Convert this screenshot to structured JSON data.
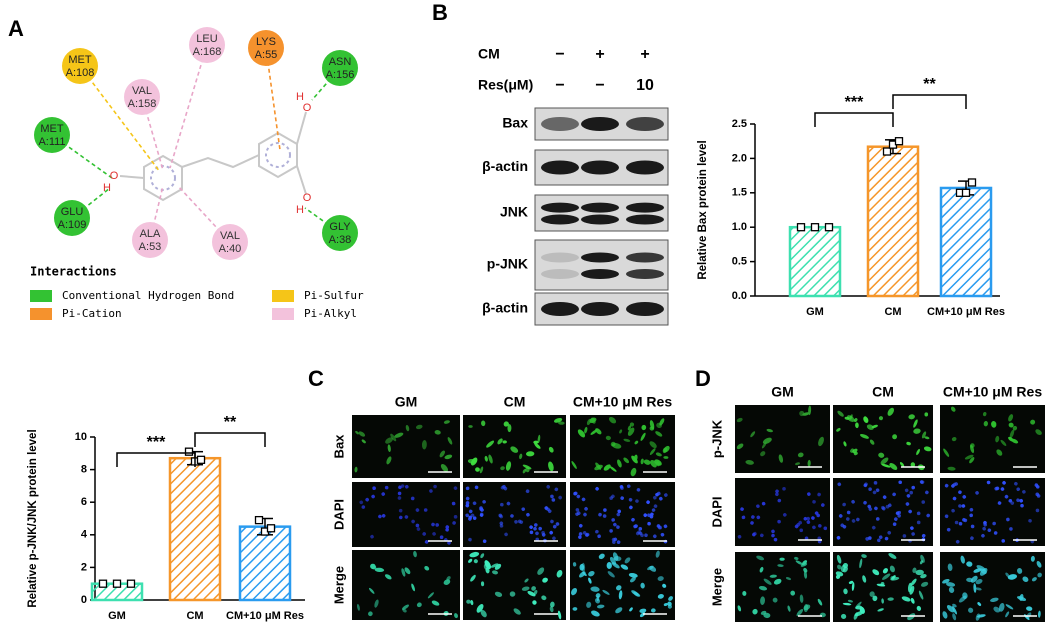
{
  "panel_labels": [
    "A",
    "B",
    "C",
    "D"
  ],
  "docking": {
    "nodes": [
      {
        "residue": "MET",
        "chain": "A:108",
        "interaction": "Pi-Sulfur"
      },
      {
        "residue": "VAL",
        "chain": "A:158",
        "interaction": "Pi-Alkyl"
      },
      {
        "residue": "LEU",
        "chain": "A:168",
        "interaction": "Pi-Alkyl"
      },
      {
        "residue": "LYS",
        "chain": "A:55",
        "interaction": "Pi-Cation"
      },
      {
        "residue": "ASN",
        "chain": "A:156",
        "interaction": "Conventional Hydrogen Bond"
      },
      {
        "residue": "MET",
        "chain": "A:111",
        "interaction": "Conventional Hydrogen Bond"
      },
      {
        "residue": "GLU",
        "chain": "A:109",
        "interaction": "Conventional Hydrogen Bond"
      },
      {
        "residue": "ALA",
        "chain": "A:53",
        "interaction": "Pi-Alkyl"
      },
      {
        "residue": "VAL",
        "chain": "A:40",
        "interaction": "Pi-Alkyl"
      },
      {
        "residue": "GLY",
        "chain": "A:38",
        "interaction": "Conventional Hydrogen Bond"
      }
    ],
    "atoms": [
      "O",
      "H",
      "O",
      "H",
      "O",
      "H"
    ],
    "legend_title": "Interactions",
    "legend": [
      {
        "label": "Conventional Hydrogen Bond",
        "color": "#33c233"
      },
      {
        "label": "Pi-Cation",
        "color": "#f5922d"
      },
      {
        "label": "Pi-Sulfur",
        "color": "#f5c518"
      },
      {
        "label": "Pi-Alkyl",
        "color": "#f3c2dc"
      }
    ]
  },
  "blot": {
    "conditions": [
      {
        "label": "CM",
        "values": [
          "−",
          "+",
          "+"
        ]
      },
      {
        "label": "Res(μM)",
        "values": [
          "−",
          "−",
          "10"
        ]
      }
    ],
    "rows": [
      "Bax",
      "β-actin",
      "JNK",
      "p-JNK",
      "β-actin"
    ]
  },
  "chart_data": [
    {
      "type": "bar",
      "y_label": "Relative Bax protein level",
      "categories": [
        "GM",
        "CM",
        "CM+10 μM Res"
      ],
      "values": [
        1.0,
        2.17,
        1.57
      ],
      "errors": [
        0,
        0.1,
        0.1
      ],
      "points": [
        [
          1,
          1,
          1
        ],
        [
          2.1,
          2.2,
          2.25
        ],
        [
          1.5,
          1.5,
          1.65
        ]
      ],
      "colors": [
        "#3de0b0",
        "#f5962a",
        "#2a9bef"
      ],
      "ylim": [
        0,
        2.5
      ],
      "yticks": [
        {
          "value": 0,
          "label": "0.0"
        },
        0.5,
        {
          "value": 1,
          "label": "1.0"
        },
        1.5,
        {
          "value": 2,
          "label": "2.0"
        },
        2.5
      ],
      "annotations": [
        {
          "text": "***",
          "from": "GM",
          "to": "CM"
        },
        {
          "text": "**",
          "from": "CM",
          "to": "CM+10 μM Res"
        }
      ]
    },
    {
      "type": "bar",
      "y_label": "Relative p-JNK/JNK protein level",
      "categories": [
        "GM",
        "CM",
        "CM+10 μM Res"
      ],
      "values": [
        1.0,
        8.7,
        4.5
      ],
      "errors": [
        0,
        0.4,
        0.5
      ],
      "points": [
        [
          1,
          1,
          1
        ],
        [
          9.1,
          8.5,
          8.6
        ],
        [
          4.9,
          4.2,
          4.4
        ]
      ],
      "colors": [
        "#3de0b0",
        "#f5962a",
        "#2a9bef"
      ],
      "ylim": [
        0,
        10
      ],
      "yticks": [
        0,
        2,
        4,
        6,
        8,
        10
      ],
      "annotations": [
        {
          "text": "***",
          "from": "GM",
          "to": "CM"
        },
        {
          "text": "**",
          "from": "CM",
          "to": "CM+10 μM Res"
        }
      ]
    }
  ],
  "micrographs": [
    {
      "columns": [
        "GM",
        "CM",
        "CM+10 μM Res"
      ],
      "rows": [
        "Bax",
        "DAPI",
        "Merge"
      ]
    },
    {
      "columns": [
        "GM",
        "CM",
        "CM+10 μM Res"
      ],
      "rows": [
        "p-JNK",
        "DAPI",
        "Merge"
      ]
    }
  ]
}
